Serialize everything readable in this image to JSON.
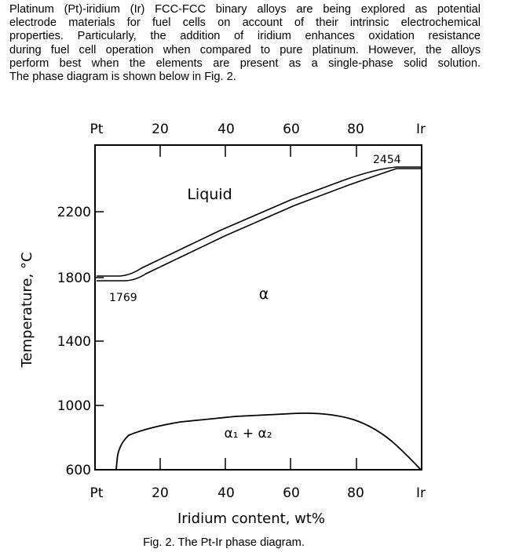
{
  "intro_lines": [
    "Platinum (Pt)-iridium (Ir) FCC-FCC binary alloys are being explored as potential",
    "electrode materials for fuel cells on account of their intrinsic electrochemical",
    "properties. Particularly, the addition of iridium enhances oxidation resistance",
    "during fuel cell operation when compared to pure platinum. However, the alloys",
    "perform best when the elements are present as a single-phase solid solution.",
    "The phase diagram is shown below in Fig. 2."
  ],
  "diagram": {
    "top_labels": [
      "Pt",
      "20",
      "40",
      "60",
      "80",
      "Ir"
    ],
    "bottom_labels": [
      "Pt",
      "20",
      "40",
      "60",
      "80",
      "Ir"
    ],
    "y_ticks": [
      "2200",
      "1800",
      "1400",
      "1000",
      "600"
    ],
    "ylabel": "Temperature, °C",
    "xlabel": "Iridium content, wt%",
    "region_liquid": "Liquid",
    "region_alpha": "α",
    "region_two_phase": "α₁ + α₂",
    "annot_pt_melt": "1769",
    "annot_ir_melt": "2454"
  },
  "caption": "Fig. 2. The Pt-Ir phase diagram.",
  "chart_data": {
    "type": "line",
    "title": "",
    "xlabel": "Iridium content, wt%",
    "ylabel": "Temperature, °C",
    "xlim": [
      0,
      100
    ],
    "ylim": [
      600,
      2550
    ],
    "series": [
      {
        "x": [
          0,
          5,
          10,
          20,
          30,
          40,
          50,
          60,
          70,
          80,
          90,
          95,
          100
        ],
        "y": [
          1769,
          1769,
          1790,
          1890,
          2000,
          2100,
          2190,
          2270,
          2340,
          2400,
          2450,
          2454,
          2454
        ]
      },
      {
        "x": [
          0,
          5,
          10,
          20,
          30,
          40,
          50,
          60,
          70,
          80,
          90,
          95,
          100
        ],
        "y": [
          1769,
          1769,
          1775,
          1860,
          1965,
          2065,
          2160,
          2245,
          2320,
          2385,
          2440,
          2454,
          2454
        ]
      },
      {
        "x": [
          3,
          5,
          10,
          20,
          30,
          40,
          50,
          60,
          70,
          80,
          85,
          90,
          95,
          100
        ],
        "y": [
          600,
          700,
          790,
          850,
          880,
          910,
          930,
          940,
          940,
          930,
          910,
          860,
          760,
          600
        ]
      }
    ]
  }
}
